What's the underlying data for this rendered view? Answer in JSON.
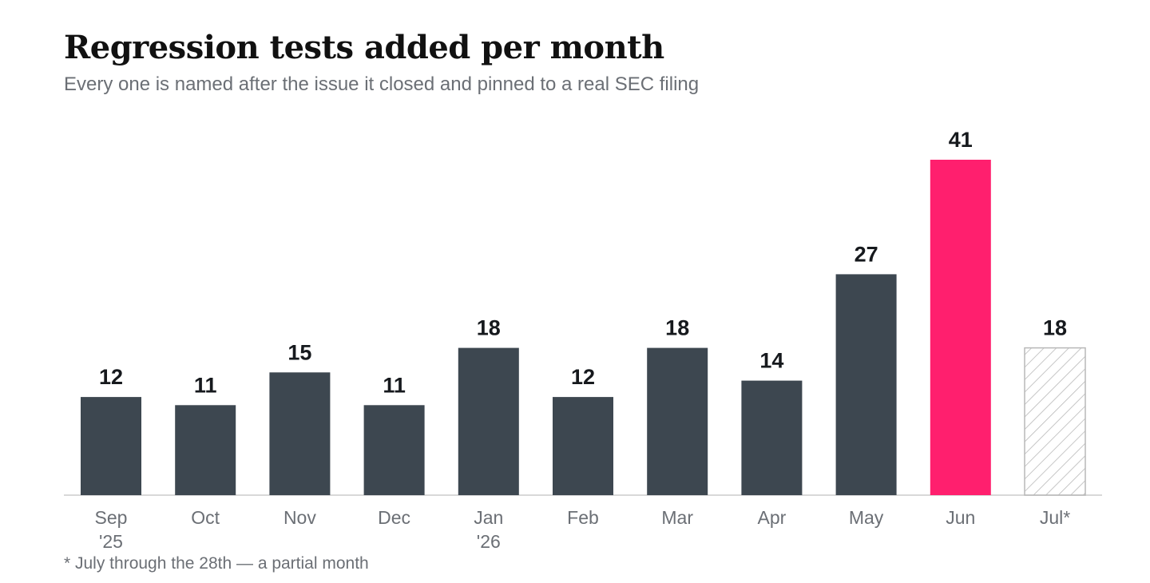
{
  "title": "Regression tests added per month",
  "subtitle": "Every one is named after the issue it closed and pinned to a real SEC filing",
  "footnote": "* July through the 28th — a partial month",
  "colors": {
    "bar": "#3d4750",
    "highlight": "#ff1f6e",
    "partial_stroke": "#b8b8b8",
    "axis": "#cccccc"
  },
  "chart_data": {
    "type": "bar",
    "title": "Regression tests added per month",
    "xlabel": "",
    "ylabel": "",
    "ylim": [
      0,
      41
    ],
    "grid": false,
    "legend": "none",
    "categories": [
      [
        "Sep",
        "'25"
      ],
      [
        "Oct"
      ],
      [
        "Nov"
      ],
      [
        "Dec"
      ],
      [
        "Jan",
        "'26"
      ],
      [
        "Feb"
      ],
      [
        "Mar"
      ],
      [
        "Apr"
      ],
      [
        "May"
      ],
      [
        "Jun"
      ],
      [
        "Jul*"
      ]
    ],
    "values": [
      12,
      11,
      15,
      11,
      18,
      12,
      18,
      14,
      27,
      41,
      18
    ],
    "highlight": [
      "normal",
      "normal",
      "normal",
      "normal",
      "normal",
      "normal",
      "normal",
      "normal",
      "normal",
      "peak",
      "partial"
    ]
  }
}
